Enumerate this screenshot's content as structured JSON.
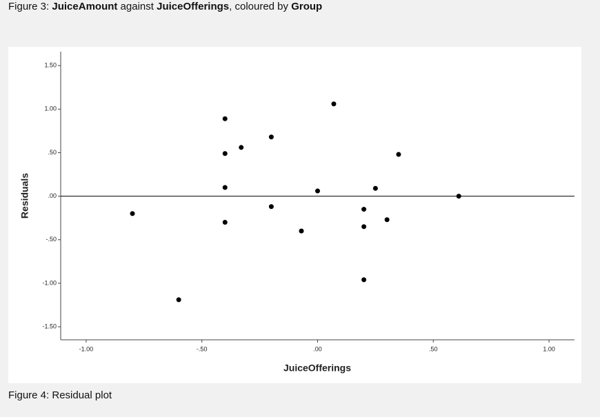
{
  "header": {
    "caption_parts": [
      "Figure 3: ",
      "JuiceAmount",
      " against ",
      "JuiceOfferings",
      ", coloured by ",
      "Group"
    ]
  },
  "chart_data": {
    "type": "scatter",
    "x_label": "JuiceOfferings",
    "y_label": "Residuals",
    "color": "#000000",
    "x": [
      -0.8,
      -0.6,
      -0.4,
      -0.4,
      -0.4,
      -0.4,
      -0.33,
      -0.2,
      -0.2,
      -0.07,
      0.0,
      0.07,
      0.2,
      0.2,
      0.2,
      0.25,
      0.3,
      0.35,
      0.61
    ],
    "values": [
      -0.2,
      -1.19,
      0.89,
      0.49,
      0.1,
      -0.3,
      0.56,
      0.68,
      -0.12,
      -0.4,
      0.06,
      1.06,
      -0.15,
      -0.35,
      -0.96,
      0.09,
      -0.27,
      0.48,
      0.0
    ],
    "xlim": [
      -1.11,
      1.11
    ],
    "ylim": [
      -1.65,
      1.66
    ],
    "xticks": [
      {
        "value": -1,
        "label": "-1.00"
      },
      {
        "value": -0.5,
        "label": "-.50"
      },
      {
        "value": 0,
        "label": ".00"
      },
      {
        "value": 0.5,
        "label": ".50"
      },
      {
        "value": 1,
        "label": "1.00"
      }
    ],
    "yticks": [
      {
        "value": 1.5,
        "label": "1.50"
      },
      {
        "value": 1,
        "label": "1.00"
      },
      {
        "value": 0.5,
        "label": ".50"
      },
      {
        "value": 0,
        "label": ".00"
      },
      {
        "value": -0.5,
        "label": "-.50"
      },
      {
        "value": -1,
        "label": "-1.00"
      },
      {
        "value": -1.5,
        "label": "-1.50"
      }
    ],
    "reference_line": 0
  },
  "footer": {
    "caption": "Figure 4: Residual plot"
  }
}
